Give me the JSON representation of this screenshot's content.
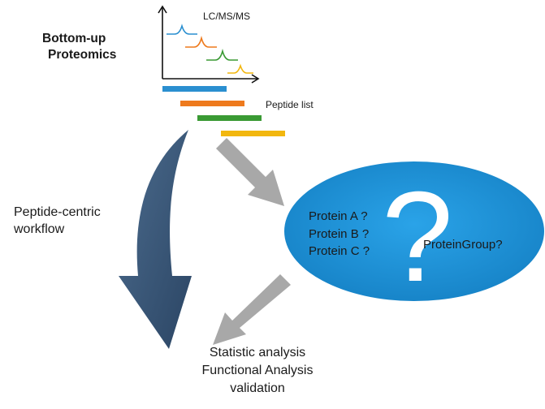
{
  "title": {
    "line1": "Bottom-up",
    "line2": "Proteomics"
  },
  "chromatogram": {
    "label": "LC/MS/MS",
    "peak_colors": [
      "#2a8fd0",
      "#ee7a1d",
      "#3a9a34",
      "#f2b70f"
    ]
  },
  "peptide_list": {
    "label": "Peptide list",
    "bar_colors": [
      "#2a8fd0",
      "#ee7a1d",
      "#3a9a34",
      "#f2b70f"
    ]
  },
  "workflow": {
    "line1": "Peptide-centric",
    "line2": "workflow",
    "arrow_color": "#3d5b7b"
  },
  "ellipse": {
    "fill": "#1d8fd5",
    "question_mark": "?",
    "proteins": [
      "Protein A ?",
      "Protein B ?",
      "Protein C ?"
    ],
    "group": "ProteinGroup?"
  },
  "output": {
    "lines": [
      "Statistic analysis",
      "Functional Analysis",
      "validation"
    ]
  },
  "colors": {
    "gray_arrow": "#a8a8a8",
    "text": "#1a1a1a"
  }
}
